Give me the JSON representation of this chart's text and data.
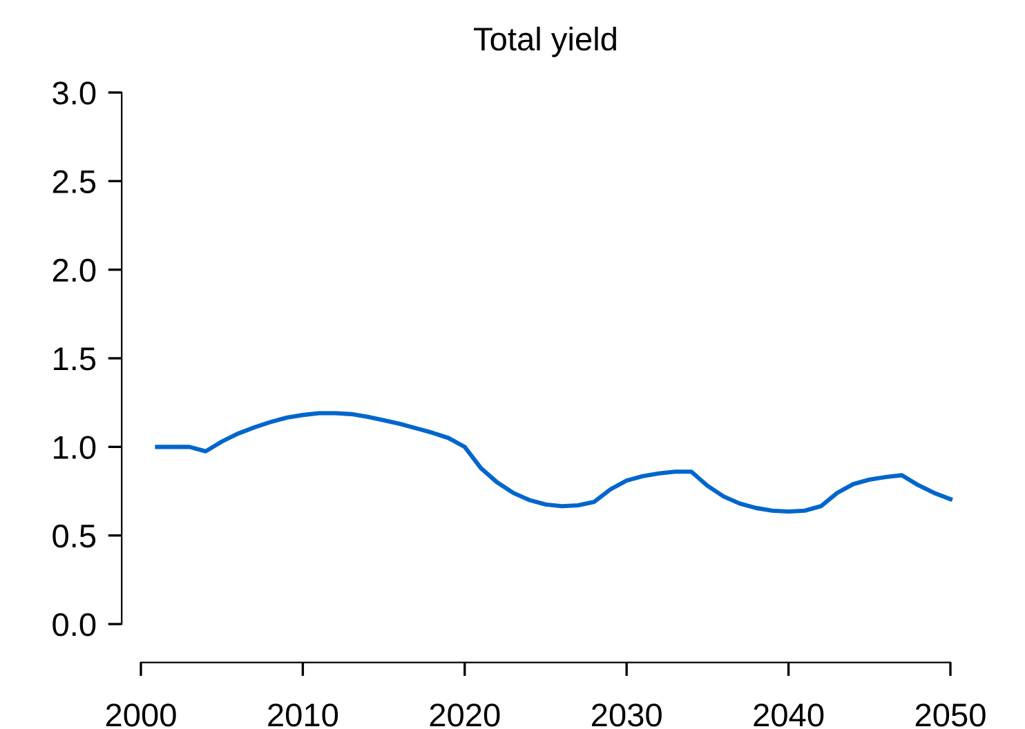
{
  "chart_data": {
    "type": "line",
    "title": "Total yield",
    "x": [
      2001,
      2002,
      2003,
      2004,
      2005,
      2006,
      2007,
      2008,
      2009,
      2010,
      2011,
      2012,
      2013,
      2014,
      2015,
      2016,
      2017,
      2018,
      2019,
      2020,
      2021,
      2022,
      2023,
      2024,
      2025,
      2026,
      2027,
      2028,
      2029,
      2030,
      2031,
      2032,
      2033,
      2034,
      2035,
      2036,
      2037,
      2038,
      2039,
      2040,
      2041,
      2042,
      2043,
      2044,
      2045,
      2046,
      2047,
      2048,
      2049,
      2050
    ],
    "series": [
      {
        "color": "#0066cc",
        "values": [
          1.0,
          1.0,
          1.0,
          0.975,
          1.03,
          1.075,
          1.11,
          1.14,
          1.165,
          1.18,
          1.19,
          1.19,
          1.185,
          1.17,
          1.15,
          1.13,
          1.105,
          1.08,
          1.05,
          1.0,
          0.88,
          0.8,
          0.74,
          0.7,
          0.675,
          0.665,
          0.67,
          0.69,
          0.76,
          0.81,
          0.835,
          0.85,
          0.86,
          0.86,
          0.78,
          0.72,
          0.68,
          0.655,
          0.64,
          0.635,
          0.64,
          0.665,
          0.74,
          0.79,
          0.815,
          0.83,
          0.84,
          0.785,
          0.74,
          0.705
        ]
      }
    ],
    "xlim": [
      2000,
      2050
    ],
    "xticks": [
      2000,
      2010,
      2020,
      2030,
      2040,
      2050
    ],
    "ylim": [
      0,
      3
    ],
    "yticks": [
      {
        "value": 0,
        "label": "0.0"
      },
      0.5,
      {
        "value": 1,
        "label": "1.0"
      },
      1.5,
      {
        "value": 2,
        "label": "2.0"
      },
      2.5,
      {
        "value": 3,
        "label": "3.0"
      }
    ],
    "grid": false,
    "legend": false,
    "marker": "none",
    "line_style": "solid"
  }
}
